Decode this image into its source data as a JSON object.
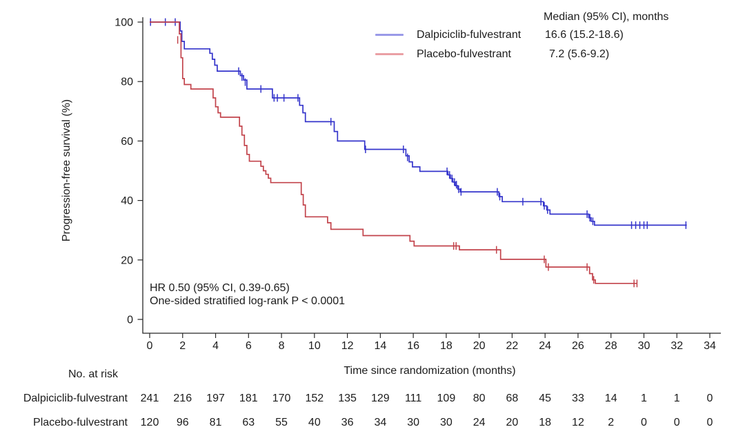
{
  "figure": {
    "background": "#ffffff",
    "axis_color": "#262626",
    "text_color": "#1c1c1c"
  },
  "chart_data": {
    "type": "line",
    "subtype": "kaplan-meier-step",
    "title": "",
    "xlabel": "Time since randomization (months)",
    "ylabel": "Progression-free survival (%)",
    "xlim": [
      0,
      34
    ],
    "ylim": [
      0,
      100
    ],
    "xticks": [
      0,
      2,
      4,
      6,
      8,
      10,
      12,
      14,
      16,
      18,
      20,
      22,
      24,
      26,
      28,
      30,
      32,
      34
    ],
    "yticks": [
      0,
      20,
      40,
      60,
      80,
      100
    ],
    "grid": false,
    "legend_position": "top-right-inside",
    "annotation": {
      "line1": "HR 0.50 (95% CI, 0.39-0.65)",
      "line2": "One-sided stratified log-rank P < 0.0001"
    },
    "legend": {
      "header": "Median (95% CI), months",
      "entries": [
        {
          "name": "Dalpiciclib-fulvestrant",
          "median": "16.6 (15.2-18.6)",
          "color": "#3434cb",
          "swatch_color": "#9a9ae8"
        },
        {
          "name": "Placebo-fulvestrant",
          "median": "7.2 (5.6-9.2)",
          "color": "#c2434b",
          "swatch_color": "#eaa0a5"
        }
      ]
    },
    "series": [
      {
        "name": "Dalpiciclib-fulvestrant",
        "color": "#3434cb",
        "steps": [
          [
            0,
            100
          ],
          [
            1.75,
            100
          ],
          [
            1.85,
            97
          ],
          [
            1.95,
            93.5
          ],
          [
            2.1,
            91
          ],
          [
            3.5,
            91
          ],
          [
            3.65,
            89.5
          ],
          [
            3.8,
            87.5
          ],
          [
            3.95,
            85.5
          ],
          [
            4.1,
            83.5
          ],
          [
            5.35,
            83.5
          ],
          [
            5.5,
            82
          ],
          [
            5.7,
            80.5
          ],
          [
            5.9,
            77.5
          ],
          [
            7.3,
            77.5
          ],
          [
            7.45,
            74.5
          ],
          [
            8.95,
            74.5
          ],
          [
            9.1,
            72
          ],
          [
            9.3,
            69.5
          ],
          [
            9.45,
            66.5
          ],
          [
            11.05,
            66.5
          ],
          [
            11.2,
            63.2
          ],
          [
            11.4,
            60
          ],
          [
            12.9,
            60
          ],
          [
            13.05,
            57.2
          ],
          [
            15.35,
            57.2
          ],
          [
            15.55,
            55
          ],
          [
            15.75,
            53
          ],
          [
            15.95,
            51.3
          ],
          [
            16.25,
            51.3
          ],
          [
            16.4,
            49.8
          ],
          [
            17.95,
            49.8
          ],
          [
            18.1,
            48.6
          ],
          [
            18.25,
            47.4
          ],
          [
            18.4,
            46.2
          ],
          [
            18.55,
            45
          ],
          [
            18.7,
            43.8
          ],
          [
            18.85,
            42.9
          ],
          [
            21.05,
            42.9
          ],
          [
            21.2,
            41.3
          ],
          [
            21.4,
            39.6
          ],
          [
            23.7,
            39.6
          ],
          [
            23.9,
            38.2
          ],
          [
            24.1,
            36.8
          ],
          [
            24.3,
            35.4
          ],
          [
            26.5,
            35.4
          ],
          [
            26.65,
            34.2
          ],
          [
            26.8,
            33
          ],
          [
            27.0,
            31.7
          ],
          [
            32.6,
            31.7
          ]
        ],
        "censors": [
          [
            0.05,
            100
          ],
          [
            0.95,
            100
          ],
          [
            1.55,
            100
          ],
          [
            1.9,
            95
          ],
          [
            5.4,
            83.5
          ],
          [
            5.6,
            81.5
          ],
          [
            5.8,
            79.8
          ],
          [
            6.75,
            77.5
          ],
          [
            7.55,
            74.5
          ],
          [
            7.75,
            74.5
          ],
          [
            8.15,
            74.5
          ],
          [
            9.0,
            74.5
          ],
          [
            11.0,
            66.5
          ],
          [
            13.1,
            57.2
          ],
          [
            15.4,
            57.2
          ],
          [
            15.65,
            54.5
          ],
          [
            18.05,
            49.8
          ],
          [
            18.2,
            48.6
          ],
          [
            18.35,
            47.4
          ],
          [
            18.5,
            46.2
          ],
          [
            18.62,
            45.3
          ],
          [
            18.75,
            43.8
          ],
          [
            18.9,
            42.9
          ],
          [
            21.1,
            42.9
          ],
          [
            21.25,
            41.3
          ],
          [
            22.65,
            39.6
          ],
          [
            23.75,
            39.6
          ],
          [
            23.95,
            38.2
          ],
          [
            24.15,
            36.8
          ],
          [
            26.55,
            35.4
          ],
          [
            26.72,
            34.2
          ],
          [
            26.9,
            33
          ],
          [
            29.25,
            31.7
          ],
          [
            29.5,
            31.7
          ],
          [
            29.75,
            31.7
          ],
          [
            30.0,
            31.7
          ],
          [
            30.2,
            31.7
          ],
          [
            32.55,
            31.7
          ]
        ]
      },
      {
        "name": "Placebo-fulvestrant",
        "color": "#c2434b",
        "steps": [
          [
            0,
            100
          ],
          [
            1.7,
            100
          ],
          [
            1.8,
            96
          ],
          [
            1.9,
            88
          ],
          [
            2.0,
            81
          ],
          [
            2.1,
            79
          ],
          [
            2.35,
            79
          ],
          [
            2.5,
            77.5
          ],
          [
            3.7,
            77.5
          ],
          [
            3.85,
            74.5
          ],
          [
            4.0,
            71.5
          ],
          [
            4.15,
            69.5
          ],
          [
            4.3,
            68
          ],
          [
            5.3,
            68
          ],
          [
            5.45,
            65
          ],
          [
            5.6,
            62
          ],
          [
            5.75,
            58.5
          ],
          [
            5.9,
            55.5
          ],
          [
            6.05,
            53.2
          ],
          [
            6.6,
            53.2
          ],
          [
            6.75,
            51.5
          ],
          [
            6.9,
            50
          ],
          [
            7.05,
            48.8
          ],
          [
            7.2,
            47.5
          ],
          [
            7.35,
            46
          ],
          [
            9.05,
            46
          ],
          [
            9.2,
            42
          ],
          [
            9.32,
            38.5
          ],
          [
            9.45,
            34.5
          ],
          [
            10.65,
            34.5
          ],
          [
            10.8,
            32.5
          ],
          [
            11.0,
            30.3
          ],
          [
            12.8,
            30.3
          ],
          [
            12.95,
            28.2
          ],
          [
            15.6,
            28.2
          ],
          [
            15.8,
            26.3
          ],
          [
            16.05,
            24.7
          ],
          [
            18.65,
            24.7
          ],
          [
            18.8,
            23.4
          ],
          [
            21.1,
            23.4
          ],
          [
            21.3,
            20.2
          ],
          [
            23.85,
            20.2
          ],
          [
            24.05,
            17.6
          ],
          [
            26.5,
            17.6
          ],
          [
            26.7,
            15.4
          ],
          [
            26.88,
            13.3
          ],
          [
            27.05,
            12.1
          ],
          [
            29.6,
            12.1
          ]
        ],
        "censors": [
          [
            1.7,
            94
          ],
          [
            18.45,
            24.7
          ],
          [
            18.6,
            24.7
          ],
          [
            21.05,
            23.4
          ],
          [
            23.95,
            20.2
          ],
          [
            24.2,
            17.6
          ],
          [
            26.55,
            17.6
          ],
          [
            26.95,
            13.3
          ],
          [
            29.4,
            12.1
          ],
          [
            29.58,
            12.1
          ]
        ]
      }
    ],
    "risk_table": {
      "title": "No. at risk",
      "times": [
        0,
        2,
        4,
        6,
        8,
        10,
        12,
        14,
        16,
        18,
        20,
        22,
        24,
        26,
        28,
        30,
        32,
        34
      ],
      "rows": [
        {
          "name": "Dalpiciclib-fulvestrant",
          "counts": [
            241,
            216,
            197,
            181,
            170,
            152,
            135,
            129,
            111,
            109,
            80,
            68,
            45,
            33,
            14,
            1,
            1,
            0
          ]
        },
        {
          "name": "Placebo-fulvestrant",
          "counts": [
            120,
            96,
            81,
            63,
            55,
            40,
            36,
            34,
            30,
            30,
            24,
            20,
            18,
            12,
            2,
            0,
            0,
            0
          ]
        }
      ]
    }
  }
}
